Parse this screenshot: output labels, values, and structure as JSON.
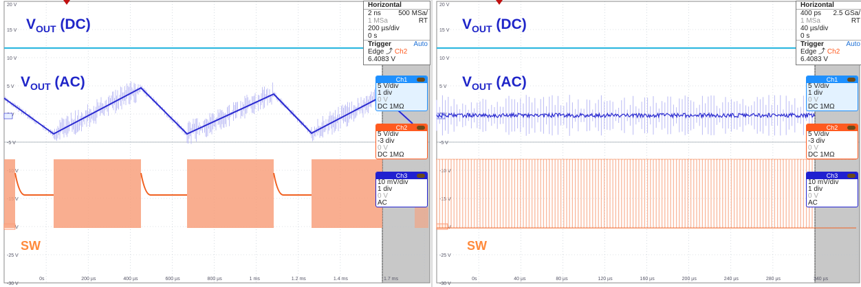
{
  "left": {
    "labels": {
      "vout_dc_main": "V",
      "vout_dc_sub": "OUT",
      "vout_dc_tail": " (DC)",
      "vout_ac_main": "V",
      "vout_ac_sub": "OUT",
      "vout_ac_tail": " (AC)",
      "sw": "SW"
    },
    "y_ticks": [
      "20 V",
      "15 V",
      "10 V",
      "5 V",
      "0 V",
      "-5 V",
      "-10 V",
      "-15 V",
      "-20 V",
      "-25 V",
      "-30 V"
    ],
    "x_ticks": [
      "0s",
      "200 µs",
      "400 µs",
      "600 µs",
      "800 µs",
      "1 ms",
      "1.2 ms",
      "1.4 ms",
      "1.7 ms"
    ],
    "horizontal": {
      "title": "Horizontal",
      "row1_left": "2 ns",
      "row1_right": "500 MSa/",
      "row2_left": "1 MSa",
      "row2_right": "RT",
      "row3": "200 µs/div",
      "row4": "0 s",
      "trigger_title": "Trigger",
      "trigger_mode": "Auto",
      "trigger_edge": "Edge",
      "trigger_src": "Ch2",
      "trigger_level": "6.4083 V"
    },
    "channels": [
      {
        "name": "Ch1",
        "scale": "5 V/div",
        "pos": "1 div",
        "offset": "0 V",
        "coupling": "DC 1MΩ"
      },
      {
        "name": "Ch2",
        "scale": "5 V/div",
        "pos": "-3 div",
        "offset": "0 V",
        "coupling": "DC 1MΩ"
      },
      {
        "name": "Ch3",
        "scale": "10 mV/div",
        "pos": "1 div",
        "offset": "0 V",
        "coupling": "AC"
      }
    ]
  },
  "right": {
    "labels": {
      "vout_dc_main": "V",
      "vout_dc_sub": "OUT",
      "vout_dc_tail": " (DC)",
      "vout_ac_main": "V",
      "vout_ac_sub": "OUT",
      "vout_ac_tail": " (AC)",
      "sw": "SW"
    },
    "y_ticks": [
      "20 V",
      "15 V",
      "10 V",
      "5 V",
      "0 V",
      "-5 V",
      "-10 V",
      "-15 V",
      "-20 V",
      "-25 V",
      "-30 V"
    ],
    "x_ticks": [
      "0s",
      "40 µs",
      "80 µs",
      "120 µs",
      "160 µs",
      "200 µs",
      "240 µs",
      "280 µs",
      "340 µs"
    ],
    "horizontal": {
      "title": "Horizontal",
      "row1_left": "400 ps",
      "row1_right": "2.5 GSa/",
      "row2_left": "1 MSa",
      "row2_right": "RT",
      "row3": "40 µs/div",
      "row4": "0 s",
      "trigger_title": "Trigger",
      "trigger_mode": "Auto",
      "trigger_edge": "Edge",
      "trigger_src": "Ch2",
      "trigger_level": "6.4083 V"
    },
    "channels": [
      {
        "name": "Ch1",
        "scale": "5 V/div",
        "pos": "1 div",
        "offset": "0 V",
        "coupling": "DC 1MΩ"
      },
      {
        "name": "Ch2",
        "scale": "5 V/div",
        "pos": "-3 div",
        "offset": "0 V",
        "coupling": "DC 1MΩ"
      },
      {
        "name": "Ch3",
        "scale": "10 mV/div",
        "pos": "1 div",
        "offset": "0 V",
        "coupling": "AC"
      }
    ]
  },
  "colors": {
    "vout_dc": "#30b8e0",
    "vout_ac": "#2a2ad0",
    "vout_ac_band": "#b9b9f4",
    "sw": "#f8a07c",
    "sw_line": "#f06020",
    "ch1": "#1e90ff",
    "ch2": "#ff5a1f",
    "ch3": "#2020d0",
    "label_blue": "#1f25c8",
    "label_orange": "#ff8a3c"
  }
}
